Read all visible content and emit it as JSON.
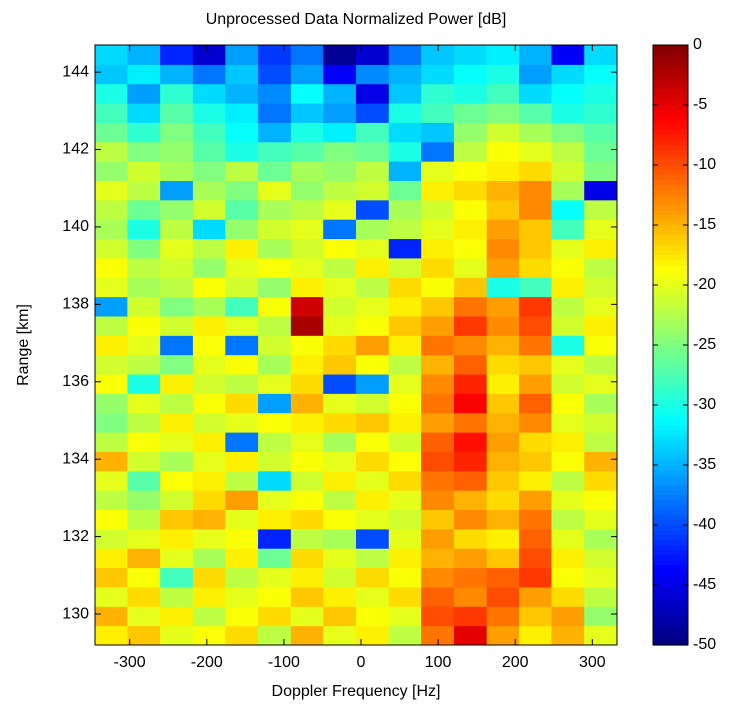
{
  "chart_data": {
    "type": "heatmap",
    "title": "Unprocessed Data Normalized Power [dB]",
    "x_label": "Doppler Frequency [Hz]",
    "y_label": "Range [km]",
    "colormap": "jet",
    "x": [
      -324,
      -282,
      -239,
      -197,
      -155,
      -112,
      -70,
      -28,
      15,
      57,
      99,
      142,
      184,
      226,
      268,
      311
    ],
    "y": [
      129.45,
      129.95,
      130.45,
      130.95,
      131.45,
      131.95,
      132.45,
      132.95,
      133.45,
      133.95,
      134.45,
      134.95,
      135.45,
      135.95,
      136.45,
      136.95,
      137.45,
      137.95,
      138.45,
      138.95,
      139.45,
      139.95,
      140.45,
      140.95,
      141.45,
      141.95,
      142.45,
      142.95,
      143.45,
      143.95,
      144.45
    ],
    "z": [
      [
        -18,
        -16,
        -20,
        -19,
        -17,
        -22,
        -15,
        -20,
        -18,
        -22,
        -12,
        -5,
        -14,
        -18,
        -15,
        -20
      ],
      [
        -15,
        -20,
        -18,
        -22,
        -19,
        -17,
        -20,
        -16,
        -19,
        -20,
        -10,
        -9,
        -12,
        -16,
        -14,
        -24
      ],
      [
        -20,
        -17,
        -22,
        -18,
        -20,
        -19,
        -16,
        -18,
        -20,
        -17,
        -11,
        -13,
        -10,
        -14,
        -17,
        -22
      ],
      [
        -16,
        -19,
        -28,
        -17,
        -22,
        -20,
        -18,
        -21,
        -17,
        -19,
        -13,
        -12,
        -11,
        -9,
        -19,
        -20
      ],
      [
        -18,
        -15,
        -20,
        -23,
        -18,
        -26,
        -17,
        -20,
        -22,
        -18,
        -15,
        -14,
        -16,
        -10,
        -18,
        -21
      ],
      [
        -21,
        -20,
        -18,
        -20,
        -19,
        -42,
        -22,
        -23,
        -40,
        -20,
        -14,
        -17,
        -18,
        -11,
        -20,
        -23
      ],
      [
        -19,
        -22,
        -16,
        -15,
        -20,
        -18,
        -17,
        -19,
        -20,
        -21,
        -16,
        -13,
        -15,
        -12,
        -22,
        -20
      ],
      [
        -22,
        -24,
        -21,
        -17,
        -14,
        -20,
        -19,
        -22,
        -18,
        -20,
        -13,
        -15,
        -17,
        -14,
        -20,
        -19
      ],
      [
        -20,
        -27,
        -19,
        -18,
        -22,
        -33,
        -21,
        -18,
        -20,
        -17,
        -12,
        -11,
        -16,
        -18,
        -22,
        -17
      ],
      [
        -15,
        -21,
        -23,
        -20,
        -18,
        -21,
        -19,
        -20,
        -17,
        -19,
        -10,
        -8,
        -15,
        -16,
        -19,
        -15
      ],
      [
        -22,
        -19,
        -20,
        -18,
        -38,
        -22,
        -20,
        -23,
        -19,
        -21,
        -11,
        -7,
        -14,
        -17,
        -18,
        -22
      ],
      [
        -25,
        -22,
        -18,
        -21,
        -20,
        -19,
        -18,
        -17,
        -16,
        -18,
        -14,
        -12,
        -15,
        -13,
        -20,
        -21
      ],
      [
        -24,
        -20,
        -22,
        -19,
        -17,
        -36,
        -15,
        -20,
        -21,
        -19,
        -12,
        -6,
        -16,
        -11,
        -19,
        -23
      ],
      [
        -19,
        -30,
        -18,
        -21,
        -22,
        -20,
        -17,
        -40,
        -36,
        -20,
        -13,
        -8,
        -18,
        -14,
        -21,
        -20
      ],
      [
        -21,
        -22,
        -25,
        -20,
        -19,
        -23,
        -18,
        -16,
        -19,
        -22,
        -15,
        -11,
        -17,
        -16,
        -20,
        -22
      ],
      [
        -18,
        -20,
        -38,
        -19,
        -38,
        -21,
        -19,
        -17,
        -14,
        -18,
        -12,
        -13,
        -15,
        -12,
        -30,
        -19
      ],
      [
        -22,
        -19,
        -21,
        -18,
        -20,
        -22,
        -2,
        -20,
        -19,
        -16,
        -14,
        -9,
        -13,
        -10,
        -21,
        -18
      ],
      [
        -36,
        -21,
        -25,
        -23,
        -28,
        -19,
        -4,
        -21,
        -20,
        -18,
        -16,
        -12,
        -14,
        -9,
        -22,
        -20
      ],
      [
        -20,
        -23,
        -22,
        -19,
        -21,
        -24,
        -18,
        -20,
        -22,
        -17,
        -19,
        -16,
        -30,
        -28,
        -18,
        -21
      ],
      [
        -19,
        -22,
        -21,
        -24,
        -20,
        -19,
        -20,
        -22,
        -18,
        -21,
        -17,
        -20,
        -14,
        -17,
        -19,
        -22
      ],
      [
        -21,
        -25,
        -20,
        -22,
        -18,
        -23,
        -21,
        -19,
        -20,
        -42,
        -18,
        -19,
        -13,
        -16,
        -20,
        -18
      ],
      [
        -23,
        -30,
        -22,
        -33,
        -24,
        -21,
        -20,
        -38,
        -23,
        -22,
        -20,
        -18,
        -14,
        -16,
        -28,
        -20
      ],
      [
        -22,
        -26,
        -24,
        -21,
        -27,
        -23,
        -22,
        -20,
        -40,
        -23,
        -21,
        -19,
        -16,
        -13,
        -31,
        -22
      ],
      [
        -20,
        -22,
        -36,
        -23,
        -25,
        -20,
        -24,
        -22,
        -21,
        -26,
        -18,
        -17,
        -15,
        -13,
        -23,
        -45
      ],
      [
        -24,
        -21,
        -23,
        -25,
        -22,
        -26,
        -23,
        -24,
        -22,
        -35,
        -20,
        -19,
        -18,
        -17,
        -21,
        -25
      ],
      [
        -22,
        -25,
        -24,
        -27,
        -30,
        -28,
        -27,
        -25,
        -26,
        -30,
        -38,
        -22,
        -19,
        -20,
        -22,
        -26
      ],
      [
        -26,
        -29,
        -25,
        -28,
        -31,
        -35,
        -30,
        -32,
        -28,
        -33,
        -34,
        -24,
        -21,
        -23,
        -25,
        -27
      ],
      [
        -28,
        -33,
        -27,
        -30,
        -32,
        -38,
        -34,
        -36,
        -40,
        -30,
        -28,
        -26,
        -25,
        -27,
        -30,
        -29
      ],
      [
        -30,
        -36,
        -29,
        -33,
        -35,
        -37,
        -31,
        -35,
        -45,
        -34,
        -29,
        -30,
        -28,
        -33,
        -31,
        -30
      ],
      [
        -34,
        -32,
        -35,
        -38,
        -34,
        -40,
        -36,
        -44,
        -37,
        -35,
        -33,
        -31,
        -30,
        -36,
        -33,
        -31
      ],
      [
        -33,
        -35,
        -42,
        -46,
        -36,
        -41,
        -38,
        -49,
        -46,
        -38,
        -34,
        -33,
        -32,
        -35,
        -44,
        -33
      ]
    ],
    "xlim": [
      -345,
      332
    ],
    "ylim": [
      129.2,
      144.7
    ],
    "xticks": [
      -300,
      -200,
      -100,
      0,
      100,
      200,
      300
    ],
    "yticks": [
      130,
      132,
      134,
      136,
      138,
      140,
      142,
      144
    ],
    "clim": [
      -50,
      0
    ],
    "cticks": [
      0,
      -5,
      -10,
      -15,
      -20,
      -25,
      -30,
      -35,
      -40,
      -45,
      -50
    ]
  }
}
